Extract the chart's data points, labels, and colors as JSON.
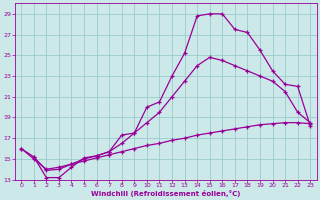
{
  "xlabel": "Windchill (Refroidissement éolien,°C)",
  "background_color": "#cce8e8",
  "grid_color": "#99cccc",
  "line_color": "#990099",
  "xlim": [
    -0.5,
    23.5
  ],
  "ylim": [
    13,
    30
  ],
  "xticks": [
    0,
    1,
    2,
    3,
    4,
    5,
    6,
    7,
    8,
    9,
    10,
    11,
    12,
    13,
    14,
    15,
    16,
    17,
    18,
    19,
    20,
    21,
    22,
    23
  ],
  "yticks": [
    13,
    15,
    17,
    19,
    21,
    23,
    25,
    27,
    29
  ],
  "curve1_x": [
    0,
    1,
    2,
    3,
    4,
    5,
    6,
    7,
    8,
    9,
    10,
    11,
    12,
    13,
    14,
    15,
    16,
    17,
    18,
    19,
    20,
    21,
    22,
    23
  ],
  "curve1_y": [
    16.0,
    15.2,
    13.2,
    13.2,
    14.2,
    15.1,
    15.3,
    15.7,
    17.3,
    17.5,
    20.0,
    20.5,
    23.0,
    25.2,
    28.8,
    29.0,
    29.0,
    27.5,
    27.2,
    25.5,
    23.5,
    22.2,
    22.0,
    18.2
  ],
  "curve2_x": [
    1,
    2,
    3,
    4,
    5,
    6,
    7,
    8,
    9,
    10,
    11,
    12,
    13,
    14,
    15,
    16,
    17,
    18,
    19,
    20,
    21,
    22,
    23
  ],
  "curve2_y": [
    15.2,
    13.9,
    14.0,
    14.5,
    15.0,
    15.3,
    15.7,
    16.5,
    17.5,
    18.5,
    19.5,
    21.0,
    22.5,
    24.0,
    24.8,
    24.5,
    24.0,
    23.5,
    23.0,
    22.5,
    21.5,
    19.5,
    18.5
  ],
  "curve3_x": [
    0,
    1,
    2,
    3,
    4,
    5,
    6,
    7,
    8,
    9,
    10,
    11,
    12,
    13,
    14,
    15,
    16,
    17,
    18,
    19,
    20,
    21,
    22,
    23
  ],
  "curve3_y": [
    16.0,
    15.0,
    14.0,
    14.2,
    14.5,
    14.8,
    15.1,
    15.4,
    15.7,
    16.0,
    16.3,
    16.5,
    16.8,
    17.0,
    17.3,
    17.5,
    17.7,
    17.9,
    18.1,
    18.3,
    18.4,
    18.5,
    18.5,
    18.4
  ]
}
